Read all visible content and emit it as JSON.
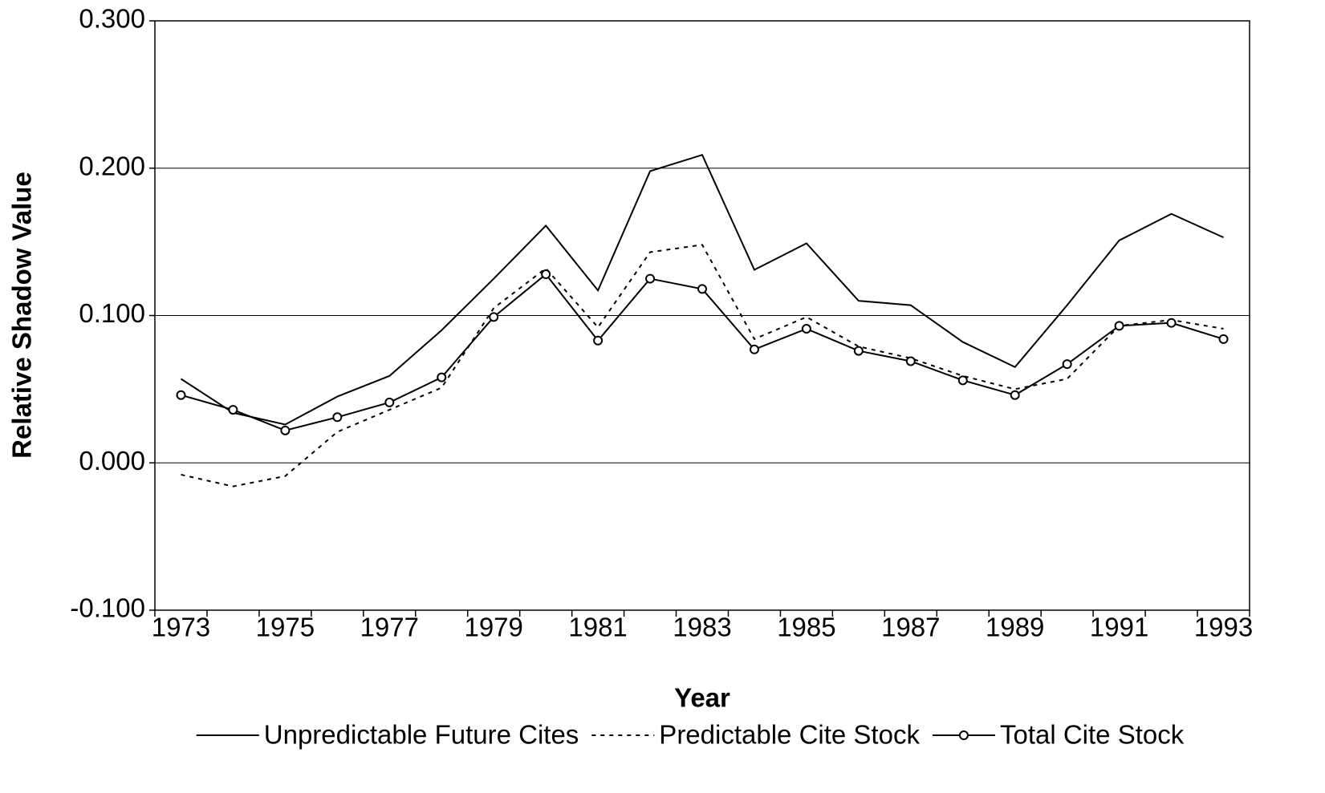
{
  "chart_data": {
    "type": "line",
    "x_label": "Year",
    "y_label": "Relative Shadow Value",
    "categories": [
      "1973",
      null,
      "1975",
      null,
      "1977",
      null,
      "1979",
      null,
      "1981",
      null,
      "1983",
      null,
      "1985",
      null,
      "1987",
      null,
      "1989",
      null,
      "1991",
      null,
      "1993"
    ],
    "ylim": [
      -0.1,
      0.3
    ],
    "yticks": [
      {
        "value": -0.1,
        "label": "-0.100"
      },
      {
        "value": 0,
        "label": "0.000"
      },
      {
        "value": 0.1,
        "label": "0.100"
      },
      {
        "value": 0.2,
        "label": "0.200"
      },
      {
        "value": 0.3,
        "label": "0.300"
      }
    ],
    "grid": true,
    "legend": "bottom",
    "series": [
      {
        "name": "Unpredictable Future Cites",
        "color": "#000000",
        "line_style": "solid",
        "marker": "none",
        "values": [
          0.057,
          0.034,
          0.026,
          0.045,
          0.059,
          0.09,
          0.125,
          0.161,
          0.117,
          0.198,
          0.209,
          0.131,
          0.149,
          0.11,
          0.107,
          0.082,
          0.065,
          0.107,
          0.151,
          0.169,
          0.153
        ]
      },
      {
        "name": "Predictable Cite Stock",
        "color": "#000000",
        "line_style": "dashed",
        "marker": "none",
        "values": [
          -0.008,
          -0.016,
          -0.009,
          0.021,
          0.036,
          0.051,
          0.105,
          0.132,
          0.092,
          0.143,
          0.148,
          0.084,
          0.099,
          0.079,
          0.071,
          0.059,
          0.05,
          0.057,
          0.093,
          0.097,
          0.091
        ]
      },
      {
        "name": "Total Cite Stock",
        "color": "#000000",
        "line_style": "solid",
        "marker": "circle",
        "values": [
          0.046,
          0.036,
          0.022,
          0.031,
          0.041,
          0.058,
          0.099,
          0.128,
          0.083,
          0.125,
          0.118,
          0.077,
          0.091,
          0.076,
          0.069,
          0.056,
          0.046,
          0.067,
          0.093,
          0.095,
          0.084
        ]
      }
    ]
  }
}
